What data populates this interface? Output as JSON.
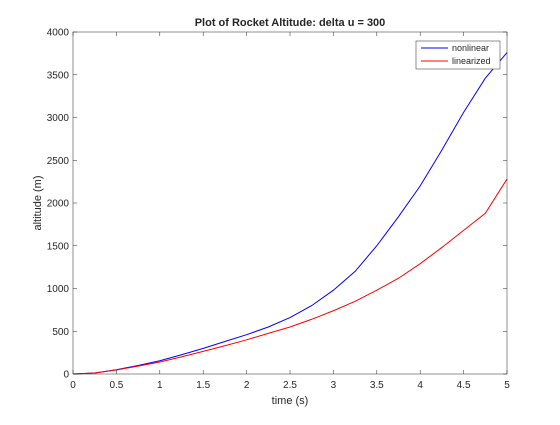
{
  "chart_data": {
    "type": "line",
    "title": "Plot of Rocket Altitude: delta u = 300",
    "xlabel": "time (s)",
    "ylabel": "altitude (m)",
    "xlim": [
      0,
      5
    ],
    "ylim": [
      0,
      4000
    ],
    "xticks": [
      0,
      0.5,
      1,
      1.5,
      2,
      2.5,
      3,
      3.5,
      4,
      4.5,
      5
    ],
    "xtick_labels": [
      "0",
      "0.5",
      "1",
      "1.5",
      "2",
      "2.5",
      "3",
      "3.5",
      "4",
      "4.5",
      "5"
    ],
    "yticks": [
      0,
      500,
      1000,
      1500,
      2000,
      2500,
      3000,
      3500,
      4000
    ],
    "ytick_labels": [
      "0",
      "500",
      "1000",
      "1500",
      "2000",
      "2500",
      "3000",
      "3500",
      "4000"
    ],
    "grid": false,
    "legend_position": "top-right",
    "series": [
      {
        "name": "nonlinear",
        "color": "#0000ff",
        "x": [
          0,
          0.25,
          0.5,
          0.75,
          1,
          1.25,
          1.5,
          1.75,
          2,
          2.25,
          2.5,
          2.75,
          3,
          3.25,
          3.5,
          3.75,
          4,
          4.25,
          4.5,
          4.75,
          5
        ],
        "y": [
          0,
          12,
          50,
          100,
          155,
          225,
          300,
          380,
          460,
          550,
          660,
          800,
          980,
          1200,
          1500,
          1840,
          2200,
          2620,
          3060,
          3460,
          3760
        ]
      },
      {
        "name": "linearized",
        "color": "#ff0000",
        "x": [
          0,
          0.25,
          0.5,
          0.75,
          1,
          1.25,
          1.5,
          1.75,
          2,
          2.25,
          2.5,
          2.75,
          3,
          3.25,
          3.5,
          3.75,
          4,
          4.25,
          4.5,
          4.75,
          5
        ],
        "y": [
          0,
          12,
          47,
          92,
          140,
          200,
          265,
          330,
          400,
          475,
          550,
          640,
          740,
          850,
          980,
          1120,
          1290,
          1480,
          1680,
          1880,
          2280
        ]
      }
    ]
  }
}
